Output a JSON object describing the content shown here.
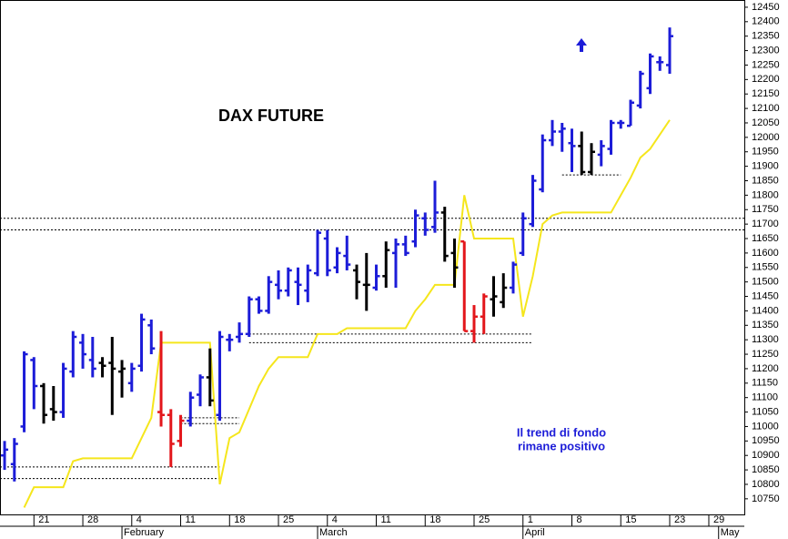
{
  "chart_data": {
    "type": "ohlc",
    "title": "DAX FUTURE",
    "annotations": [
      "Il trend di fondo",
      "rimane positivo"
    ],
    "open": [
      10900,
      10870,
      11000,
      11230,
      11140,
      11060,
      11050,
      11190,
      11290,
      11230,
      11220,
      11220,
      11190,
      11150,
      11210,
      11350,
      11050,
      11040,
      10950,
      11020,
      11110,
      11170,
      11040,
      11300,
      11310,
      11320,
      11440,
      11400,
      11490,
      11470,
      11500,
      11470,
      11530,
      11650,
      11550,
      11590,
      11540,
      11490,
      11480,
      11520,
      11600,
      11630,
      11640,
      11720,
      11690,
      11740,
      11600,
      11640,
      11330,
      11380,
      11440,
      11430,
      11480,
      11600,
      11700,
      11820,
      11990,
      12020,
      11980,
      11970,
      11880,
      11940,
      11960,
      12050,
      12040,
      12110,
      12170,
      12260,
      12250
    ],
    "high": [
      10950,
      10960,
      11260,
      11240,
      11150,
      11140,
      11220,
      11330,
      11320,
      11310,
      11240,
      11310,
      11230,
      11220,
      11390,
      11370,
      11330,
      11060,
      11040,
      11120,
      11180,
      11270,
      11330,
      11320,
      11360,
      11450,
      11450,
      11520,
      11540,
      11550,
      11550,
      11560,
      11680,
      11680,
      11620,
      11660,
      11560,
      11600,
      11560,
      11640,
      11650,
      11660,
      11750,
      11740,
      11850,
      11760,
      11650,
      11640,
      11420,
      11460,
      11520,
      11530,
      11570,
      11740,
      11870,
      12010,
      12060,
      12050,
      12030,
      12020,
      11980,
      11990,
      12060,
      12060,
      12130,
      12230,
      12290,
      12280,
      12380
    ],
    "low": [
      10850,
      10810,
      10980,
      11060,
      11010,
      11020,
      11030,
      11170,
      11200,
      11170,
      11170,
      11040,
      11100,
      11120,
      11190,
      11250,
      11000,
      10860,
      10930,
      11000,
      11070,
      11070,
      11020,
      11260,
      11290,
      11310,
      11390,
      11390,
      11440,
      11450,
      11420,
      11430,
      11520,
      11520,
      11530,
      11540,
      11440,
      11400,
      11470,
      11480,
      11480,
      11590,
      11620,
      11660,
      11670,
      11570,
      11480,
      11330,
      11290,
      11320,
      11380,
      11410,
      11460,
      11590,
      11690,
      11810,
      11970,
      11950,
      11880,
      11870,
      11870,
      11900,
      11940,
      12030,
      12040,
      12100,
      12150,
      12230,
      12220
    ],
    "close": [
      10920,
      10940,
      11250,
      11140,
      11040,
      11050,
      11200,
      11310,
      11250,
      11200,
      11210,
      11200,
      11200,
      11200,
      11370,
      11270,
      11040,
      10940,
      11020,
      11100,
      11170,
      11090,
      11310,
      11300,
      11320,
      11440,
      11400,
      11500,
      11470,
      11540,
      11490,
      11540,
      11670,
      11540,
      11600,
      11560,
      11500,
      11490,
      11520,
      11610,
      11630,
      11600,
      11730,
      11680,
      11740,
      11590,
      11550,
      11330,
      11380,
      11450,
      11450,
      11480,
      11560,
      11720,
      11850,
      11990,
      12020,
      12030,
      11970,
      11880,
      11950,
      11970,
      12050,
      12050,
      12120,
      12220,
      12280,
      12260,
      12350
    ],
    "colors": [
      "#1c1cd8",
      "#1c1cd8",
      "#1c1cd8",
      "#1c1cd8",
      "#000000",
      "#000000",
      "#1c1cd8",
      "#1c1cd8",
      "#1c1cd8",
      "#1c1cd8",
      "#000000",
      "#000000",
      "#000000",
      "#1c1cd8",
      "#1c1cd8",
      "#1c1cd8",
      "#e3161b",
      "#e3161b",
      "#e3161b",
      "#1c1cd8",
      "#1c1cd8",
      "#000000",
      "#1c1cd8",
      "#1c1cd8",
      "#1c1cd8",
      "#1c1cd8",
      "#1c1cd8",
      "#1c1cd8",
      "#1c1cd8",
      "#1c1cd8",
      "#1c1cd8",
      "#1c1cd8",
      "#1c1cd8",
      "#1c1cd8",
      "#1c1cd8",
      "#1c1cd8",
      "#000000",
      "#000000",
      "#1c1cd8",
      "#000000",
      "#1c1cd8",
      "#1c1cd8",
      "#1c1cd8",
      "#1c1cd8",
      "#1c1cd8",
      "#000000",
      "#000000",
      "#e3161b",
      "#e3161b",
      "#e3161b",
      "#000000",
      "#000000",
      "#1c1cd8",
      "#1c1cd8",
      "#1c1cd8",
      "#1c1cd8",
      "#1c1cd8",
      "#1c1cd8",
      "#1c1cd8",
      "#000000",
      "#000000",
      "#1c1cd8",
      "#1c1cd8",
      "#1c1cd8",
      "#1c1cd8",
      "#1c1cd8",
      "#1c1cd8",
      "#1c1cd8",
      "#1c1cd8"
    ],
    "line": {
      "color": "#f5e61c",
      "values": [
        null,
        null,
        10720,
        10790,
        10790,
        10790,
        10790,
        10880,
        10890,
        10890,
        10890,
        10890,
        10890,
        10890,
        10960,
        11030,
        11290,
        11290,
        11290,
        11290,
        11290,
        11290,
        10800,
        10960,
        10980,
        11060,
        11140,
        11200,
        11240,
        11240,
        11240,
        11240,
        11320,
        11320,
        11320,
        11340,
        11340,
        11340,
        11340,
        11340,
        11340,
        11340,
        11400,
        11440,
        11490,
        11490,
        11490,
        11800,
        11650,
        11650,
        11650,
        11650,
        11650,
        11380,
        11520,
        11700,
        11730,
        11740,
        11740,
        11740,
        11740,
        11740,
        11740,
        11800,
        11860,
        11930,
        11960,
        12010,
        12060
      ]
    },
    "levels": [
      {
        "value": 11720,
        "from": -0.47,
        "to": 75.63
      },
      {
        "value": 11680,
        "from": -0.47,
        "to": 75.63
      },
      {
        "value": 10860,
        "from": -0.47,
        "to": 22
      },
      {
        "value": 10820,
        "from": -0.47,
        "to": 22
      },
      {
        "value": 11030,
        "from": 18,
        "to": 24
      },
      {
        "value": 11010,
        "from": 18,
        "to": 24
      },
      {
        "value": 11320,
        "from": 25,
        "to": 54
      },
      {
        "value": 11290,
        "from": 25,
        "to": 54
      },
      {
        "value": 11870,
        "from": 57,
        "to": 63
      }
    ],
    "xlim": [
      -0.47,
      75.63
    ],
    "ylim": [
      10696,
      12475
    ],
    "xticks": [
      {
        "value": 3,
        "label": "21"
      },
      {
        "value": 8,
        "label": "28"
      },
      {
        "value": 13,
        "label": "4"
      },
      {
        "value": 18,
        "label": "11"
      },
      {
        "value": 23,
        "label": "18"
      },
      {
        "value": 28,
        "label": "25"
      },
      {
        "value": 33,
        "label": "4"
      },
      {
        "value": 38,
        "label": "11"
      },
      {
        "value": 43,
        "label": "18"
      },
      {
        "value": 48,
        "label": "25"
      },
      {
        "value": 53,
        "label": "1"
      },
      {
        "value": 58,
        "label": "8"
      },
      {
        "value": 63,
        "label": "15"
      },
      {
        "value": 68,
        "label": "23"
      },
      {
        "value": 72,
        "label": "29"
      }
    ],
    "months": [
      {
        "value": 12,
        "label": "February"
      },
      {
        "value": 32,
        "label": "March"
      },
      {
        "value": 53,
        "label": "April"
      },
      {
        "value": 73,
        "label": "May"
      }
    ],
    "yticks": [
      10750,
      10800,
      10850,
      10900,
      10950,
      11000,
      11050,
      11100,
      11150,
      11200,
      11250,
      11300,
      11350,
      11400,
      11450,
      11500,
      11550,
      11600,
      11650,
      11700,
      11750,
      11800,
      11850,
      11900,
      11950,
      12000,
      12050,
      12100,
      12150,
      12200,
      12250,
      12300,
      12350,
      12400,
      12450
    ]
  }
}
